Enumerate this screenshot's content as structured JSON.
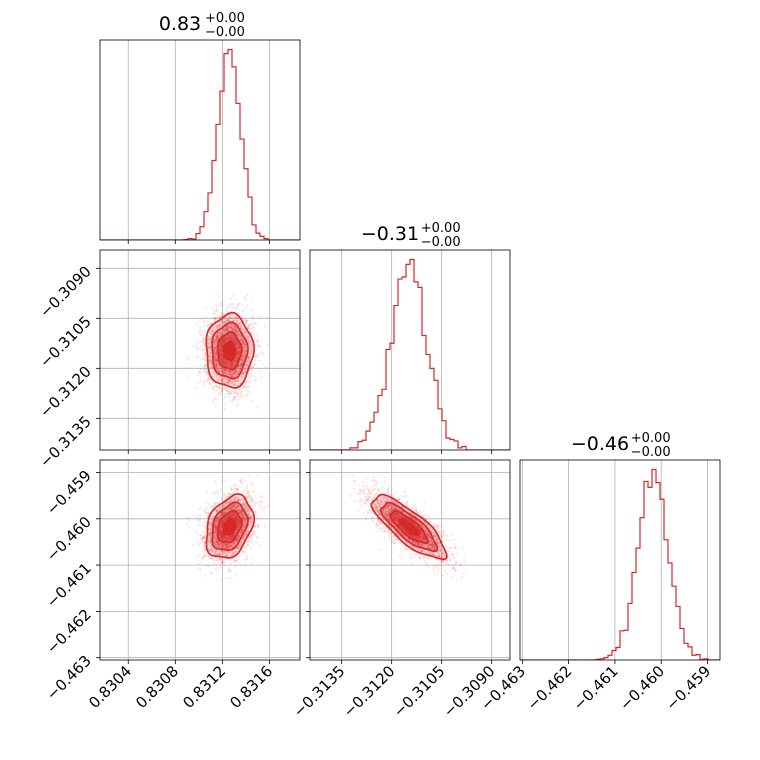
{
  "chart_data": {
    "type": "corner",
    "color": "#d62728",
    "grid": true,
    "titles": [
      {
        "value": "0.83",
        "plus": "+0.00",
        "minus": "−0.00"
      },
      {
        "value": "−0.31",
        "plus": "+0.00",
        "minus": "−0.00"
      },
      {
        "value": "−0.46",
        "plus": "+0.00",
        "minus": "−0.00"
      }
    ],
    "params": [
      {
        "range": [
          0.83016,
          0.83186
        ],
        "center": 0.83126,
        "sd": 0.0001,
        "ticks": [
          0.8304,
          0.8308,
          0.8312,
          0.8316
        ],
        "tick_labels": [
          "0.8304",
          "0.8308",
          "0.8312",
          "0.8316"
        ]
      },
      {
        "range": [
          -0.31445,
          -0.30845
        ],
        "center": -0.31148,
        "sd": 0.00055,
        "ticks": [
          -0.3135,
          -0.312,
          -0.3105,
          -0.309
        ],
        "tick_labels": [
          "−0.3135",
          "−0.3120",
          "−0.3105",
          "−0.3090"
        ]
      },
      {
        "range": [
          -0.46305,
          -0.45873
        ],
        "center": -0.46018,
        "sd": 0.00034,
        "ticks": [
          -0.463,
          -0.462,
          -0.461,
          -0.46,
          -0.459
        ],
        "tick_labels": [
          "−0.463",
          "−0.462",
          "−0.461",
          "−0.460",
          "−0.459"
        ]
      }
    ],
    "correlations": [
      [
        1,
        0,
        0.3
      ],
      [
        0,
        1,
        -0.8
      ],
      [
        0.3,
        -0.8,
        1
      ]
    ]
  }
}
